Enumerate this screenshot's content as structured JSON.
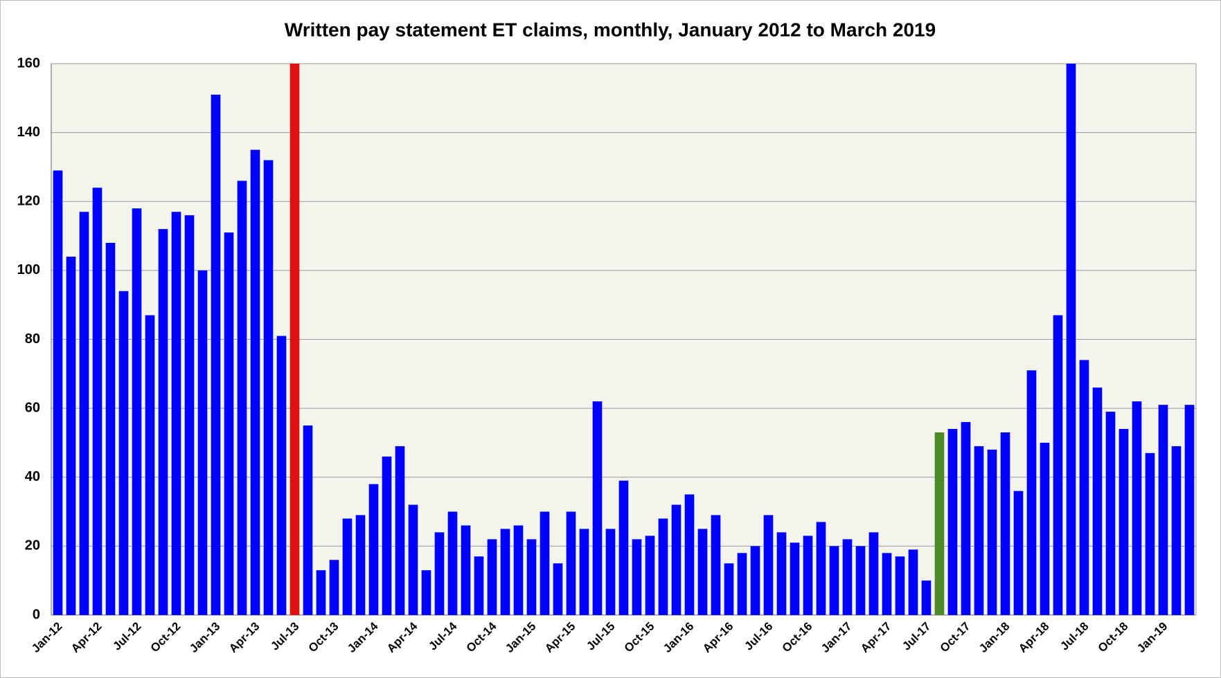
{
  "chart_data": {
    "type": "bar",
    "title": "Written pay statement ET claims, monthly, January 2012 to March 2019",
    "categories": [
      "Jan-12",
      null,
      null,
      "Apr-12",
      null,
      null,
      "Jul-12",
      null,
      null,
      "Oct-12",
      null,
      null,
      "Jan-13",
      null,
      null,
      "Apr-13",
      null,
      null,
      "Jul-13",
      null,
      null,
      "Oct-13",
      null,
      null,
      "Jan-14",
      null,
      null,
      "Apr-14",
      null,
      null,
      "Jul-14",
      null,
      null,
      "Oct-14",
      null,
      null,
      "Jan-15",
      null,
      null,
      "Apr-15",
      null,
      null,
      "Jul-15",
      null,
      null,
      "Oct-15",
      null,
      null,
      "Jan-16",
      null,
      null,
      "Apr-16",
      null,
      null,
      "Jul-16",
      null,
      null,
      "Oct-16",
      null,
      null,
      "Jan-17",
      null,
      null,
      "Apr-17",
      null,
      null,
      "Jul-17",
      null,
      null,
      "Oct-17",
      null,
      null,
      "Jan-18",
      null,
      null,
      "Apr-18",
      null,
      null,
      "Jul-18",
      null,
      null,
      "Oct-18",
      null,
      null,
      "Jan-19",
      null,
      null
    ],
    "values": [
      129,
      104,
      117,
      124,
      108,
      94,
      118,
      87,
      112,
      117,
      116,
      100,
      151,
      111,
      126,
      135,
      132,
      81,
      160,
      55,
      13,
      16,
      28,
      29,
      38,
      46,
      49,
      32,
      13,
      24,
      30,
      26,
      17,
      22,
      25,
      26,
      22,
      30,
      15,
      30,
      25,
      62,
      25,
      39,
      22,
      23,
      28,
      32,
      35,
      25,
      29,
      15,
      18,
      20,
      29,
      24,
      21,
      23,
      27,
      20,
      22,
      20,
      24,
      18,
      17,
      19,
      10,
      53,
      54,
      56,
      49,
      48,
      53,
      36,
      71,
      50,
      87,
      160,
      74,
      66,
      59,
      54,
      62,
      47,
      61,
      49,
      61
    ],
    "colors": [
      "#0000ff",
      "#0000ff",
      "#0000ff",
      "#0000ff",
      "#0000ff",
      "#0000ff",
      "#0000ff",
      "#0000ff",
      "#0000ff",
      "#0000ff",
      "#0000ff",
      "#0000ff",
      "#0000ff",
      "#0000ff",
      "#0000ff",
      "#0000ff",
      "#0000ff",
      "#0000ff",
      "#dd1111",
      "#0000ff",
      "#0000ff",
      "#0000ff",
      "#0000ff",
      "#0000ff",
      "#0000ff",
      "#0000ff",
      "#0000ff",
      "#0000ff",
      "#0000ff",
      "#0000ff",
      "#0000ff",
      "#0000ff",
      "#0000ff",
      "#0000ff",
      "#0000ff",
      "#0000ff",
      "#0000ff",
      "#0000ff",
      "#0000ff",
      "#0000ff",
      "#0000ff",
      "#0000ff",
      "#0000ff",
      "#0000ff",
      "#0000ff",
      "#0000ff",
      "#0000ff",
      "#0000ff",
      "#0000ff",
      "#0000ff",
      "#0000ff",
      "#0000ff",
      "#0000ff",
      "#0000ff",
      "#0000ff",
      "#0000ff",
      "#0000ff",
      "#0000ff",
      "#0000ff",
      "#0000ff",
      "#0000ff",
      "#0000ff",
      "#0000ff",
      "#0000ff",
      "#0000ff",
      "#0000ff",
      "#0000ff",
      "#4f8a2a",
      "#0000ff",
      "#0000ff",
      "#0000ff",
      "#0000ff",
      "#0000ff",
      "#0000ff",
      "#0000ff",
      "#0000ff",
      "#0000ff",
      "#0000ff",
      "#0000ff",
      "#0000ff",
      "#0000ff",
      "#0000ff",
      "#0000ff",
      "#0000ff",
      "#0000ff",
      "#0000ff",
      "#0000ff"
    ],
    "ylim": [
      0,
      160
    ],
    "yticks": [
      0,
      20,
      40,
      60,
      80,
      100,
      120,
      140,
      160
    ],
    "grid": true
  }
}
